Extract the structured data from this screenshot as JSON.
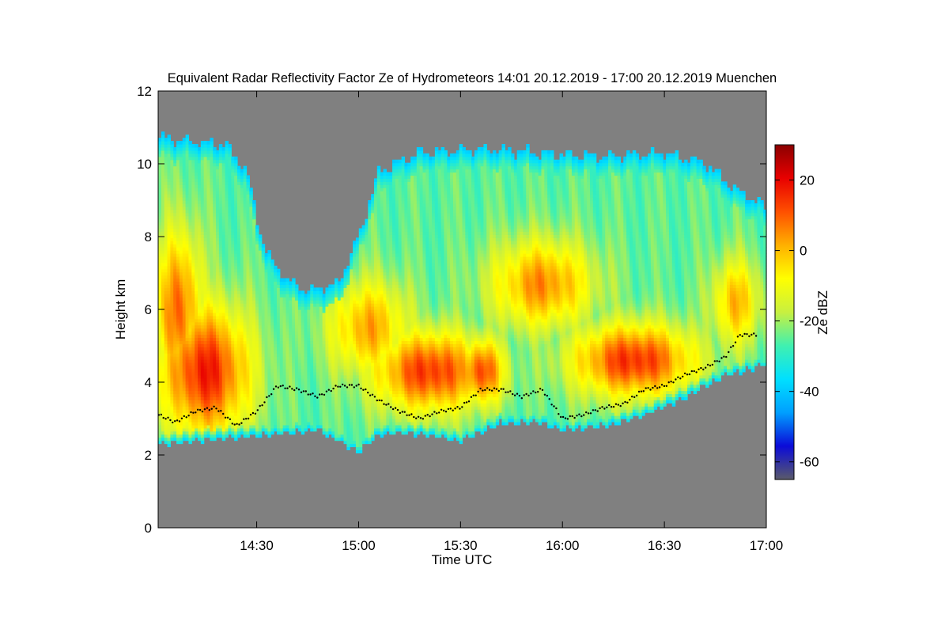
{
  "chart_data": {
    "type": "heatmap",
    "title": "Equivalent Radar Reflectivity Factor Ze of Hydrometeors   14:01 20.12.2019 - 17:00 20.12.2019 Muenchen",
    "xlabel": "Time UTC",
    "ylabel": "Height km",
    "x_range_hours": [
      14.0167,
      17.0
    ],
    "x_ticks": [
      {
        "value": 14.5,
        "label": "14:30"
      },
      {
        "value": 15.0,
        "label": "15:00"
      },
      {
        "value": 15.5,
        "label": "15:30"
      },
      {
        "value": 16.0,
        "label": "16:00"
      },
      {
        "value": 16.5,
        "label": "16:30"
      },
      {
        "value": 17.0,
        "label": "17:00"
      }
    ],
    "ylim": [
      0,
      12
    ],
    "y_ticks": [
      0,
      2,
      4,
      6,
      8,
      10,
      12
    ],
    "colorbar": {
      "label": "Ze dBZ",
      "range": [
        -65,
        30
      ],
      "ticks": [
        20,
        0,
        -20,
        -40,
        -60
      ],
      "tick_labels": [
        "20",
        "0",
        "-20",
        "-40",
        "-60"
      ],
      "colors": [
        "#5a5a6a",
        "#0b0bd8",
        "#009fff",
        "#00e0ff",
        "#40f0b0",
        "#c8f040",
        "#ffff00",
        "#ffb000",
        "#ff5000",
        "#e80000",
        "#8b0000"
      ]
    },
    "no_data_color": "#808080",
    "cloud_top_km": [
      [
        14.02,
        10.7
      ],
      [
        14.2,
        10.6
      ],
      [
        14.35,
        10.5
      ],
      [
        14.45,
        9.8
      ],
      [
        14.5,
        8.5
      ],
      [
        14.55,
        7.5
      ],
      [
        14.65,
        6.8
      ],
      [
        14.75,
        6.5
      ],
      [
        14.9,
        6.7
      ],
      [
        15.0,
        8.0
      ],
      [
        15.1,
        9.8
      ],
      [
        15.3,
        10.3
      ],
      [
        15.6,
        10.4
      ],
      [
        15.9,
        10.3
      ],
      [
        16.2,
        10.2
      ],
      [
        16.5,
        10.3
      ],
      [
        16.7,
        10.0
      ],
      [
        16.85,
        9.3
      ],
      [
        17.0,
        8.8
      ]
    ],
    "cloud_base_km": [
      [
        14.02,
        2.3
      ],
      [
        14.2,
        2.4
      ],
      [
        14.4,
        2.5
      ],
      [
        14.6,
        2.6
      ],
      [
        14.8,
        2.7
      ],
      [
        15.0,
        2.1
      ],
      [
        15.1,
        2.6
      ],
      [
        15.3,
        2.6
      ],
      [
        15.5,
        2.4
      ],
      [
        15.7,
        2.9
      ],
      [
        15.9,
        2.9
      ],
      [
        16.0,
        2.7
      ],
      [
        16.2,
        2.8
      ],
      [
        16.4,
        3.1
      ],
      [
        16.6,
        3.6
      ],
      [
        16.8,
        4.2
      ],
      [
        17.0,
        4.5
      ]
    ],
    "melting_layer_km": [
      [
        14.02,
        3.1
      ],
      [
        14.1,
        2.9
      ],
      [
        14.2,
        3.2
      ],
      [
        14.3,
        3.3
      ],
      [
        14.4,
        2.8
      ],
      [
        14.5,
        3.2
      ],
      [
        14.6,
        3.9
      ],
      [
        14.7,
        3.8
      ],
      [
        14.8,
        3.6
      ],
      [
        14.9,
        3.9
      ],
      [
        15.0,
        3.9
      ],
      [
        15.1,
        3.5
      ],
      [
        15.2,
        3.2
      ],
      [
        15.3,
        3.0
      ],
      [
        15.4,
        3.2
      ],
      [
        15.5,
        3.3
      ],
      [
        15.6,
        3.8
      ],
      [
        15.7,
        3.8
      ],
      [
        15.8,
        3.6
      ],
      [
        15.9,
        3.8
      ],
      [
        16.0,
        3.0
      ],
      [
        16.1,
        3.1
      ],
      [
        16.2,
        3.3
      ],
      [
        16.3,
        3.4
      ],
      [
        16.4,
        3.8
      ],
      [
        16.5,
        3.9
      ],
      [
        16.6,
        4.2
      ],
      [
        16.7,
        4.4
      ],
      [
        16.8,
        4.7
      ],
      [
        16.87,
        5.3
      ],
      [
        16.95,
        5.3
      ]
    ],
    "core_regions_dbz": [
      {
        "x": 14.25,
        "y": 4.3,
        "sx": 0.22,
        "sy": 1.8,
        "dbz": 17
      },
      {
        "x": 14.12,
        "y": 6.0,
        "sx": 0.12,
        "sy": 2.2,
        "dbz": 8
      },
      {
        "x": 15.35,
        "y": 4.3,
        "sx": 0.28,
        "sy": 1.1,
        "dbz": 14
      },
      {
        "x": 15.6,
        "y": 4.3,
        "sx": 0.12,
        "sy": 0.9,
        "dbz": 12
      },
      {
        "x": 16.35,
        "y": 4.6,
        "sx": 0.3,
        "sy": 1.0,
        "dbz": 15
      },
      {
        "x": 15.9,
        "y": 6.7,
        "sx": 0.25,
        "sy": 1.2,
        "dbz": 5
      },
      {
        "x": 15.05,
        "y": 5.5,
        "sx": 0.2,
        "sy": 1.3,
        "dbz": 2
      },
      {
        "x": 16.85,
        "y": 6.2,
        "sx": 0.12,
        "sy": 1.2,
        "dbz": 0
      }
    ]
  }
}
